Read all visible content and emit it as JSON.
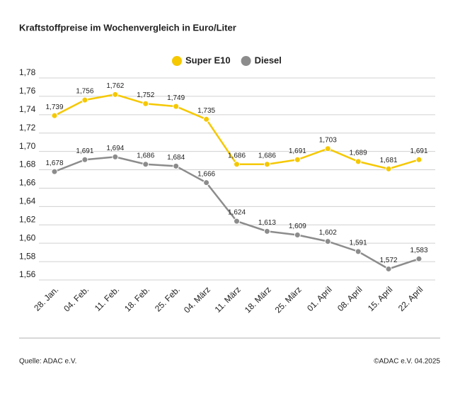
{
  "chart_data": {
    "type": "line",
    "title": "Kraftstoffpreise im Wochenvergleich in Euro/Liter",
    "categories": [
      "28. Jan.",
      "04. Feb.",
      "11. Feb.",
      "18. Feb.",
      "25. Feb.",
      "04. März",
      "11. März",
      "18. März",
      "25. März",
      "01. April",
      "08. April",
      "15. April",
      "22. April"
    ],
    "series": [
      {
        "name": "Super E10",
        "color": "#f5c800",
        "values": [
          1.739,
          1.756,
          1.762,
          1.752,
          1.749,
          1.735,
          1.686,
          1.686,
          1.691,
          1.703,
          1.689,
          1.681,
          1.691
        ],
        "value_labels": [
          "1,739",
          "1,756",
          "1,762",
          "1,752",
          "1,749",
          "1,735",
          "1,686",
          "1,686",
          "1,691",
          "1,703",
          "1,689",
          "1,681",
          "1,691"
        ]
      },
      {
        "name": "Diesel",
        "color": "#8c8c8c",
        "values": [
          1.678,
          1.691,
          1.694,
          1.686,
          1.684,
          1.666,
          1.624,
          1.613,
          1.609,
          1.602,
          1.591,
          1.572,
          1.583
        ],
        "value_labels": [
          "1,678",
          "1,691",
          "1,694",
          "1,686",
          "1,684",
          "1,666",
          "1,624",
          "1,613",
          "1,609",
          "1,602",
          "1,591",
          "1,572",
          "1,583"
        ]
      }
    ],
    "ylim": [
      1.56,
      1.78
    ],
    "yticks": [
      {
        "value": 1.56,
        "label": "1,56"
      },
      {
        "value": 1.58,
        "label": "1,58"
      },
      {
        "value": 1.6,
        "label": "1,60"
      },
      {
        "value": 1.62,
        "label": "1,62"
      },
      {
        "value": 1.64,
        "label": "1,64"
      },
      {
        "value": 1.66,
        "label": "1,66"
      },
      {
        "value": 1.68,
        "label": "1,68"
      },
      {
        "value": 1.7,
        "label": "1,70"
      },
      {
        "value": 1.72,
        "label": "1,72"
      },
      {
        "value": 1.74,
        "label": "1,74"
      },
      {
        "value": 1.76,
        "label": "1,76"
      },
      {
        "value": 1.78,
        "label": "1,78"
      }
    ],
    "grid": true,
    "legend": "top",
    "source": "Quelle: ADAC e.V.",
    "credit": "©ADAC e.V. 04.2025"
  }
}
